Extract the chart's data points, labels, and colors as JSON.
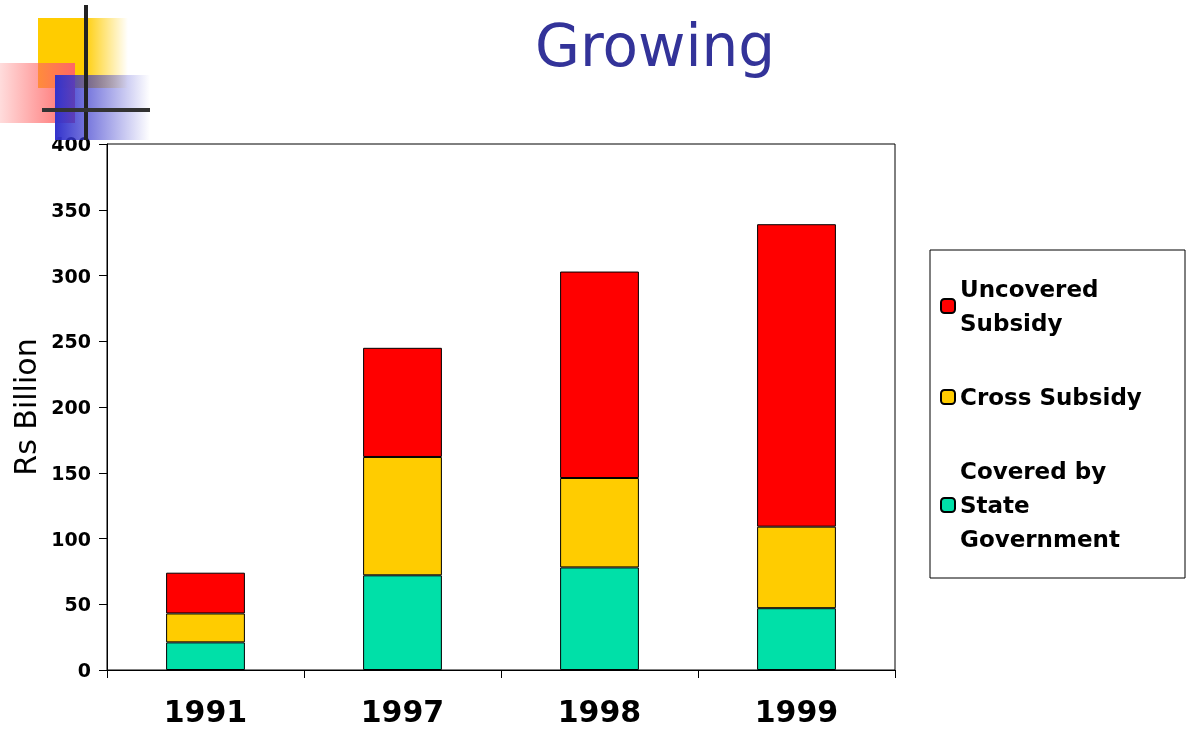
{
  "chart_data": {
    "type": "bar",
    "title": "Growing",
    "ylabel": "Rs Billion",
    "categories": [
      "1991",
      "1997",
      "1998",
      "1999"
    ],
    "stacked": true,
    "series": [
      {
        "name": "Covered by State Government",
        "color": "#00e0a8",
        "values": [
          21,
          72,
          78,
          47
        ]
      },
      {
        "name": "Cross Subsidy",
        "color": "#ffcc00",
        "values": [
          22,
          90,
          68,
          62
        ]
      },
      {
        "name": "Uncovered Subsidy",
        "color": "#ff0000",
        "values": [
          31,
          83,
          157,
          230
        ]
      }
    ],
    "ylim": [
      0,
      400
    ],
    "yticks": [
      0,
      50,
      100,
      150,
      200,
      250,
      300,
      350,
      400
    ],
    "grid": false,
    "legend": "right"
  }
}
